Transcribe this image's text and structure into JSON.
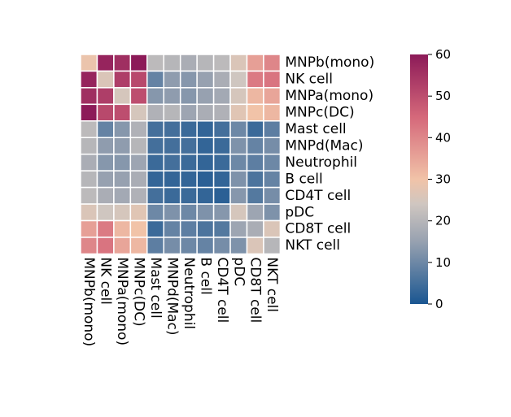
{
  "chart_data": {
    "type": "heatmap",
    "title": "",
    "xlabel": "",
    "ylabel": "",
    "rows": [
      "MNPb(mono)",
      "NK cell",
      "MNPa(mono)",
      "MNPc(DC)",
      "Mast cell",
      "MNPd(Mac)",
      "Neutrophil",
      "B cell",
      "CD4T cell",
      "pDC",
      "CD8T cell",
      "NKT cell"
    ],
    "columns": [
      "MNPb(mono)",
      "NK cell",
      "MNPa(mono)",
      "MNPc(DC)",
      "Mast cell",
      "MNPd(Mac)",
      "Neutrophil",
      "B cell",
      "CD4T cell",
      "pDC",
      "CD8T cell",
      "NKT cell"
    ],
    "values": [
      [
        29,
        58,
        56,
        60,
        21,
        20,
        18,
        20,
        21,
        26,
        36,
        40
      ],
      [
        58,
        26,
        53,
        51,
        9,
        14,
        13,
        15,
        18,
        24,
        42,
        43
      ],
      [
        56,
        53,
        25,
        50,
        13,
        14,
        13,
        15,
        17,
        25,
        32,
        35
      ],
      [
        60,
        51,
        50,
        25,
        19,
        20,
        16,
        18,
        19,
        27,
        30,
        32
      ],
      [
        21,
        9,
        13,
        19,
        5,
        5,
        4,
        3,
        5,
        10,
        4,
        8
      ],
      [
        20,
        14,
        14,
        20,
        5,
        5,
        5,
        3,
        4,
        12,
        9,
        11
      ],
      [
        18,
        13,
        13,
        16,
        4,
        5,
        4,
        3,
        4,
        10,
        8,
        10
      ],
      [
        20,
        15,
        15,
        18,
        3,
        3,
        3,
        2,
        3,
        12,
        6,
        9
      ],
      [
        21,
        18,
        17,
        19,
        5,
        4,
        4,
        3,
        2,
        13,
        7,
        11
      ],
      [
        26,
        24,
        25,
        27,
        10,
        12,
        10,
        12,
        13,
        25,
        16,
        12
      ],
      [
        36,
        42,
        32,
        30,
        4,
        9,
        8,
        6,
        7,
        16,
        18,
        26
      ],
      [
        40,
        43,
        35,
        32,
        8,
        11,
        10,
        9,
        11,
        12,
        26,
        20
      ]
    ],
    "colorbar": {
      "min": 0,
      "max": 60,
      "ticks": [
        0,
        10,
        20,
        30,
        40,
        50,
        60
      ]
    },
    "colors": {
      "low": "#1a5691",
      "mid_low": "#97a1b0",
      "mid": "#cfc6c0",
      "mid_high": "#f1c3a8",
      "upper": "#d5687a",
      "high": "#8c1a58"
    }
  }
}
